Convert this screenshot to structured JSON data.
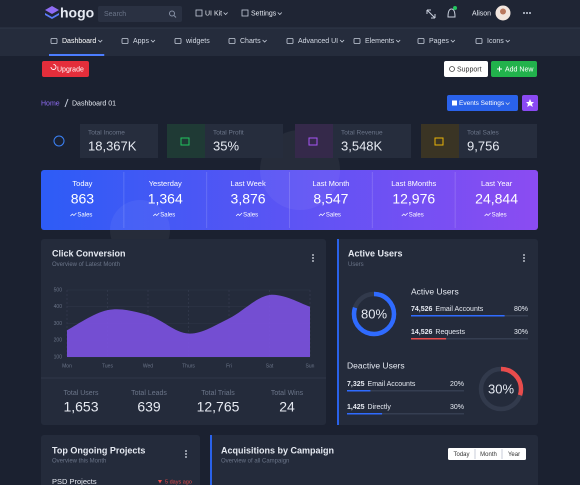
{
  "header": {
    "logo": "hogo",
    "search_placeholder": "Search",
    "menus": [
      "UI Kit",
      "Settings"
    ],
    "user": "Alison"
  },
  "nav": [
    "Dashboard",
    "Apps",
    "widgets",
    "Charts",
    "Advanced UI",
    "Elements",
    "Pages",
    "Icons"
  ],
  "actions": {
    "upgrade": "Upgrade",
    "support": "Support",
    "add_new": "Add New"
  },
  "breadcrumb": {
    "home": "Home",
    "current": "Dashboard 01"
  },
  "events_button": "Events Settings",
  "stat_cards": [
    {
      "label": "Total Income",
      "value": "18,367K"
    },
    {
      "label": "Total Profit",
      "value": "35%"
    },
    {
      "label": "Total Revenue",
      "value": "3,548K"
    },
    {
      "label": "Total Sales",
      "value": "9,756"
    }
  ],
  "sales_banner": {
    "unit": "Sales",
    "periods": [
      {
        "label": "Today",
        "value": "863"
      },
      {
        "label": "Yesterday",
        "value": "1,364"
      },
      {
        "label": "Last Week",
        "value": "3,876"
      },
      {
        "label": "Last Month",
        "value": "8,547"
      },
      {
        "label": "Last 8Months",
        "value": "12,976"
      },
      {
        "label": "Last Year",
        "value": "24,844"
      }
    ]
  },
  "click_conversion": {
    "title": "Click Conversion",
    "subtitle": "Overview of Latest Month",
    "chart": {
      "type": "area",
      "categories": [
        "Mon",
        "Tues",
        "Wed",
        "Thurs",
        "Fri",
        "Sat",
        "Sun"
      ],
      "values": [
        260,
        380,
        350,
        240,
        330,
        470,
        400
      ],
      "color": "#7d52e3",
      "ylim": [
        100,
        500
      ],
      "yticks": [
        100,
        200,
        300,
        400,
        500
      ]
    },
    "totals": [
      {
        "label": "Total Users",
        "value": "1,653"
      },
      {
        "label": "Total Leads",
        "value": "639"
      },
      {
        "label": "Total Trials",
        "value": "12,765"
      },
      {
        "label": "Total Wins",
        "value": "24"
      }
    ]
  },
  "active_users": {
    "title": "Active Users",
    "subtitle": "Users",
    "percent": 80,
    "percent_label": "80%",
    "section": "Active Users",
    "rows": [
      {
        "count": "74,526",
        "label": "Email Accounts",
        "value": 80,
        "value_label": "80%"
      },
      {
        "count": "14,526",
        "label": "Requests",
        "value": 30,
        "value_label": "30%"
      }
    ],
    "deactive": {
      "title": "Deactive Users",
      "percent": 30,
      "percent_label": "30%",
      "rows": [
        {
          "count": "7,325",
          "label": "Email Accounts",
          "value": 20,
          "value_label": "20%"
        },
        {
          "count": "1,425",
          "label": "Directly",
          "value": 30,
          "value_label": "30%"
        }
      ]
    }
  },
  "projects": {
    "title": "Top Ongoing Projects",
    "subtitle": "Overview this Month",
    "items": [
      {
        "name": "PSD Projects",
        "time": "5 days ago"
      }
    ]
  },
  "acquisitions": {
    "title": "Acquisitions by Campaign",
    "subtitle": "Overview of all Campaign",
    "ranges": [
      "Today",
      "Month",
      "Year"
    ]
  }
}
